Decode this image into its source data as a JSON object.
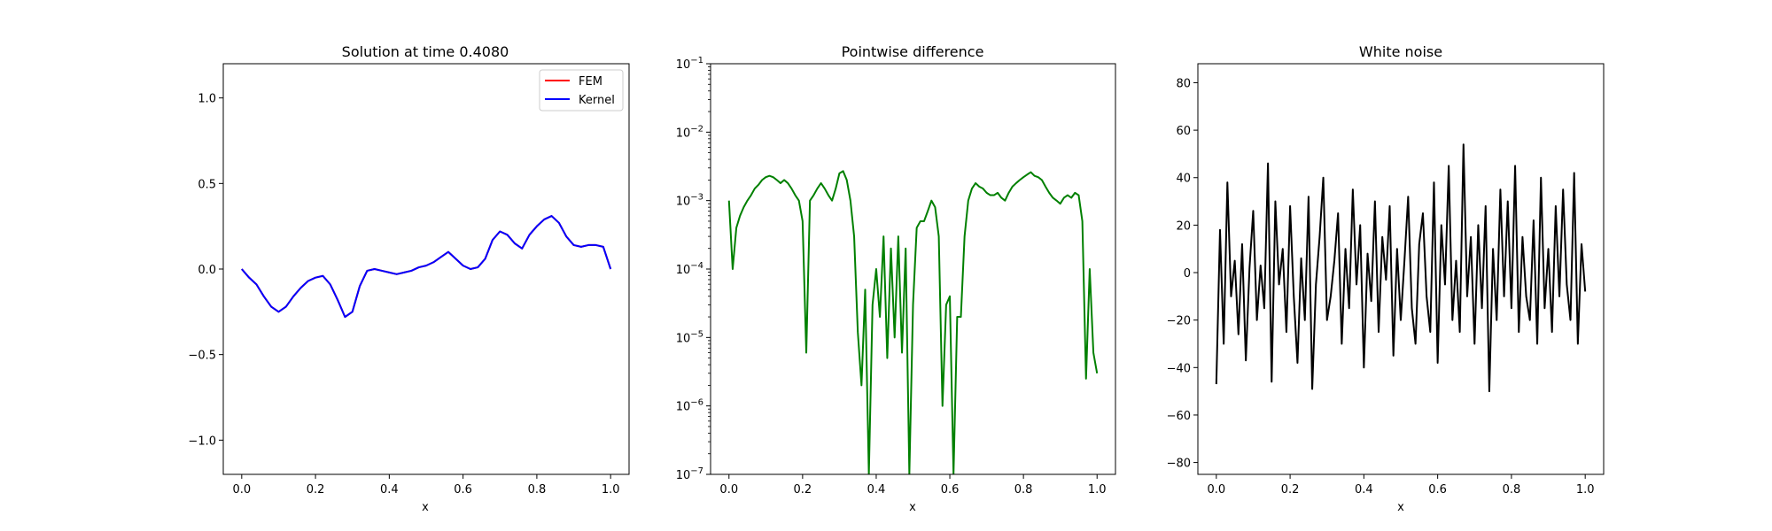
{
  "figure": {
    "background": "#ffffff"
  },
  "chart_data": [
    {
      "type": "line",
      "title": "Solution at time 0.4080",
      "xlabel": "x",
      "ylabel": "",
      "xlim": [
        -0.05,
        1.05
      ],
      "ylim": [
        -1.2,
        1.2
      ],
      "grid": false,
      "legend_placement": "top-right",
      "xticks": [
        "0.0",
        "0.2",
        "0.4",
        "0.6",
        "0.8",
        "1.0"
      ],
      "yticks": [
        "−1.0",
        "−0.5",
        "0.0",
        "0.5",
        "1.0"
      ],
      "xtick_values": [
        0.0,
        0.2,
        0.4,
        0.6,
        0.8,
        1.0
      ],
      "ytick_values": [
        -1.0,
        -0.5,
        0.0,
        0.5,
        1.0
      ],
      "series": [
        {
          "name": "FEM",
          "color": "#ff0000",
          "x": [
            0.0,
            0.02,
            0.04,
            0.06,
            0.08,
            0.1,
            0.12,
            0.14,
            0.16,
            0.18,
            0.2,
            0.22,
            0.24,
            0.26,
            0.28,
            0.3,
            0.32,
            0.34,
            0.36,
            0.38,
            0.4,
            0.42,
            0.44,
            0.46,
            0.48,
            0.5,
            0.52,
            0.54,
            0.56,
            0.58,
            0.6,
            0.62,
            0.64,
            0.66,
            0.68,
            0.7,
            0.72,
            0.74,
            0.76,
            0.78,
            0.8,
            0.82,
            0.84,
            0.86,
            0.88,
            0.9,
            0.92,
            0.94,
            0.96,
            0.98,
            1.0
          ],
          "y": [
            0.0,
            -0.05,
            -0.09,
            -0.16,
            -0.22,
            -0.25,
            -0.22,
            -0.16,
            -0.11,
            -0.07,
            -0.05,
            -0.04,
            -0.09,
            -0.18,
            -0.28,
            -0.25,
            -0.1,
            -0.01,
            0.0,
            -0.01,
            -0.02,
            -0.03,
            -0.02,
            -0.01,
            0.01,
            0.02,
            0.04,
            0.07,
            0.1,
            0.06,
            0.02,
            0.0,
            0.01,
            0.06,
            0.17,
            0.22,
            0.2,
            0.15,
            0.12,
            0.2,
            0.25,
            0.29,
            0.31,
            0.27,
            0.19,
            0.14,
            0.13,
            0.14,
            0.14,
            0.13,
            0.0
          ]
        },
        {
          "name": "Kernel",
          "color": "#0000ff",
          "x": [
            0.0,
            0.02,
            0.04,
            0.06,
            0.08,
            0.1,
            0.12,
            0.14,
            0.16,
            0.18,
            0.2,
            0.22,
            0.24,
            0.26,
            0.28,
            0.3,
            0.32,
            0.34,
            0.36,
            0.38,
            0.4,
            0.42,
            0.44,
            0.46,
            0.48,
            0.5,
            0.52,
            0.54,
            0.56,
            0.58,
            0.6,
            0.62,
            0.64,
            0.66,
            0.68,
            0.7,
            0.72,
            0.74,
            0.76,
            0.78,
            0.8,
            0.82,
            0.84,
            0.86,
            0.88,
            0.9,
            0.92,
            0.94,
            0.96,
            0.98,
            1.0
          ],
          "y": [
            0.0,
            -0.05,
            -0.09,
            -0.16,
            -0.22,
            -0.25,
            -0.22,
            -0.16,
            -0.11,
            -0.07,
            -0.05,
            -0.04,
            -0.09,
            -0.18,
            -0.28,
            -0.25,
            -0.1,
            -0.01,
            0.0,
            -0.01,
            -0.02,
            -0.03,
            -0.02,
            -0.01,
            0.01,
            0.02,
            0.04,
            0.07,
            0.1,
            0.06,
            0.02,
            0.0,
            0.01,
            0.06,
            0.17,
            0.22,
            0.2,
            0.15,
            0.12,
            0.2,
            0.25,
            0.29,
            0.31,
            0.27,
            0.19,
            0.14,
            0.13,
            0.14,
            0.14,
            0.13,
            0.0
          ]
        }
      ]
    },
    {
      "type": "line",
      "title": "Pointwise difference",
      "xlabel": "x",
      "ylabel": "",
      "yscale": "log",
      "xlim": [
        -0.05,
        1.05
      ],
      "ylim": [
        1e-07,
        0.1
      ],
      "grid": false,
      "xticks": [
        "0.0",
        "0.2",
        "0.4",
        "0.6",
        "0.8",
        "1.0"
      ],
      "xtick_values": [
        0.0,
        0.2,
        0.4,
        0.6,
        0.8,
        1.0
      ],
      "ytick_exponents": [
        -7,
        -6,
        -5,
        -4,
        -3,
        -2,
        -1
      ],
      "series": [
        {
          "color": "#008000",
          "x": [
            0.0,
            0.01,
            0.02,
            0.03,
            0.04,
            0.05,
            0.06,
            0.07,
            0.08,
            0.09,
            0.1,
            0.11,
            0.12,
            0.13,
            0.14,
            0.15,
            0.16,
            0.17,
            0.18,
            0.19,
            0.2,
            0.21,
            0.22,
            0.23,
            0.24,
            0.25,
            0.26,
            0.27,
            0.28,
            0.29,
            0.3,
            0.31,
            0.32,
            0.33,
            0.34,
            0.35,
            0.36,
            0.37,
            0.38,
            0.39,
            0.4,
            0.41,
            0.42,
            0.43,
            0.44,
            0.45,
            0.46,
            0.47,
            0.48,
            0.49,
            0.5,
            0.51,
            0.52,
            0.53,
            0.54,
            0.55,
            0.56,
            0.57,
            0.58,
            0.59,
            0.6,
            0.61,
            0.62,
            0.63,
            0.64,
            0.65,
            0.66,
            0.67,
            0.68,
            0.69,
            0.7,
            0.71,
            0.72,
            0.73,
            0.74,
            0.75,
            0.76,
            0.77,
            0.78,
            0.79,
            0.8,
            0.81,
            0.82,
            0.83,
            0.84,
            0.85,
            0.86,
            0.87,
            0.88,
            0.89,
            0.9,
            0.91,
            0.92,
            0.93,
            0.94,
            0.95,
            0.96,
            0.97,
            0.98,
            0.99,
            1.0
          ],
          "y": [
            0.001,
            0.0001,
            0.0004,
            0.0006,
            0.0008,
            0.001,
            0.0012,
            0.0015,
            0.0017,
            0.002,
            0.0022,
            0.0023,
            0.0022,
            0.002,
            0.0018,
            0.002,
            0.0018,
            0.0015,
            0.0012,
            0.001,
            0.0005,
            6e-06,
            0.001,
            0.0012,
            0.0015,
            0.0018,
            0.0015,
            0.0012,
            0.001,
            0.0015,
            0.0025,
            0.0027,
            0.002,
            0.001,
            0.0003,
            1.2e-05,
            2e-06,
            5e-05,
            1e-07,
            3e-05,
            0.0001,
            2e-05,
            0.0003,
            5e-06,
            0.0002,
            1e-05,
            0.0003,
            6e-06,
            0.0002,
            1e-07,
            3e-05,
            0.0004,
            0.0005,
            0.0005,
            0.0007,
            0.001,
            0.0008,
            0.0003,
            1e-06,
            3e-05,
            4e-05,
            1e-07,
            2e-05,
            2e-05,
            0.0003,
            0.001,
            0.0015,
            0.0018,
            0.0016,
            0.0015,
            0.0013,
            0.0012,
            0.0012,
            0.0013,
            0.0011,
            0.001,
            0.0013,
            0.0016,
            0.0018,
            0.002,
            0.0022,
            0.0024,
            0.0026,
            0.0023,
            0.0022,
            0.002,
            0.0016,
            0.0013,
            0.0011,
            0.001,
            0.0009,
            0.0011,
            0.0012,
            0.0011,
            0.0013,
            0.0012,
            0.0005,
            2.5e-06,
            0.0001,
            6e-06,
            3e-06
          ]
        }
      ]
    },
    {
      "type": "line",
      "title": "White noise",
      "xlabel": "x",
      "ylabel": "",
      "xlim": [
        -0.05,
        1.05
      ],
      "ylim": [
        -85,
        88
      ],
      "grid": false,
      "xticks": [
        "0.0",
        "0.2",
        "0.4",
        "0.6",
        "0.8",
        "1.0"
      ],
      "xtick_values": [
        0.0,
        0.2,
        0.4,
        0.6,
        0.8,
        1.0
      ],
      "yticks": [
        "−80",
        "−60",
        "−40",
        "−20",
        "0",
        "20",
        "40",
        "60",
        "80"
      ],
      "ytick_values": [
        -80,
        -60,
        -40,
        -20,
        0,
        20,
        40,
        60,
        80
      ],
      "series": [
        {
          "color": "#000000",
          "x": [
            0.0,
            0.01,
            0.02,
            0.03,
            0.04,
            0.05,
            0.06,
            0.07,
            0.08,
            0.09,
            0.1,
            0.11,
            0.12,
            0.13,
            0.14,
            0.15,
            0.16,
            0.17,
            0.18,
            0.19,
            0.2,
            0.21,
            0.22,
            0.23,
            0.24,
            0.25,
            0.26,
            0.27,
            0.28,
            0.29,
            0.3,
            0.31,
            0.32,
            0.33,
            0.34,
            0.35,
            0.36,
            0.37,
            0.38,
            0.39,
            0.4,
            0.41,
            0.42,
            0.43,
            0.44,
            0.45,
            0.46,
            0.47,
            0.48,
            0.49,
            0.5,
            0.51,
            0.52,
            0.53,
            0.54,
            0.55,
            0.56,
            0.57,
            0.58,
            0.59,
            0.6,
            0.61,
            0.62,
            0.63,
            0.64,
            0.65,
            0.66,
            0.67,
            0.68,
            0.69,
            0.7,
            0.71,
            0.72,
            0.73,
            0.74,
            0.75,
            0.76,
            0.77,
            0.78,
            0.79,
            0.8,
            0.81,
            0.82,
            0.83,
            0.84,
            0.85,
            0.86,
            0.87,
            0.88,
            0.89,
            0.9,
            0.91,
            0.92,
            0.93,
            0.94,
            0.95,
            0.96,
            0.97,
            0.98,
            0.99,
            1.0
          ],
          "y": [
            -47,
            18,
            -30,
            38,
            -10,
            5,
            -26,
            12,
            -37,
            2,
            26,
            -20,
            3,
            -15,
            46,
            -46,
            30,
            -5,
            10,
            -25,
            28,
            -10,
            -38,
            6,
            -20,
            32,
            -49,
            -5,
            15,
            40,
            -20,
            -10,
            5,
            25,
            -30,
            10,
            -15,
            35,
            -5,
            20,
            -40,
            8,
            -12,
            30,
            -25,
            15,
            -3,
            28,
            -35,
            10,
            -20,
            5,
            32,
            -15,
            -30,
            12,
            25,
            -10,
            -25,
            38,
            -38,
            20,
            -5,
            45,
            -20,
            5,
            -25,
            54,
            -10,
            15,
            -30,
            20,
            -15,
            28,
            -50,
            10,
            -20,
            35,
            -10,
            30,
            -15,
            45,
            -25,
            15,
            -10,
            -20,
            22,
            -30,
            40,
            -15,
            10,
            -25,
            28,
            -10,
            35,
            -5,
            -20,
            42,
            -30,
            12,
            -8
          ]
        }
      ]
    }
  ]
}
